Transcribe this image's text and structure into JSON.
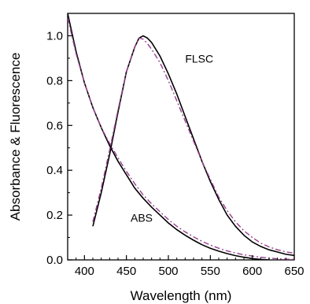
{
  "chart_data": {
    "type": "line",
    "title": "",
    "xlabel": "Wavelength (nm)",
    "ylabel": "Absorbance & Fluorescence",
    "xlim": [
      380,
      650
    ],
    "ylim": [
      0.0,
      1.1
    ],
    "x_ticks": [
      400,
      450,
      500,
      550,
      600,
      650
    ],
    "y_ticks": [
      "0.0",
      "0.2",
      "0.4",
      "0.6",
      "0.8",
      "1.0"
    ],
    "grid": false,
    "legend": "none",
    "annotations": [
      {
        "text": "FLSC",
        "x": 520,
        "y": 0.88
      },
      {
        "text": "ABS",
        "x": 455,
        "y": 0.17
      }
    ],
    "series": [
      {
        "style": "solid",
        "color": "#000000",
        "x": [
          380,
          390,
          400,
          410,
          420,
          430,
          440,
          450,
          460,
          470,
          480,
          490,
          500,
          510,
          520,
          530,
          540,
          550,
          560,
          570,
          580,
          590,
          600,
          610,
          620
        ],
        "y": [
          1.1,
          0.93,
          0.79,
          0.68,
          0.59,
          0.51,
          0.44,
          0.38,
          0.32,
          0.275,
          0.235,
          0.2,
          0.165,
          0.135,
          0.11,
          0.088,
          0.068,
          0.052,
          0.039,
          0.028,
          0.019,
          0.012,
          0.006,
          0.002,
          0.0
        ]
      },
      {
        "style": "dash-dot",
        "color": "#9a3f8f",
        "x": [
          380,
          390,
          400,
          410,
          420,
          430,
          440,
          450,
          460,
          470,
          480,
          490,
          500,
          510,
          520,
          530,
          540,
          550,
          560,
          570,
          580,
          590,
          600,
          610,
          620,
          630,
          640,
          650
        ],
        "y": [
          1.08,
          0.92,
          0.79,
          0.68,
          0.59,
          0.52,
          0.455,
          0.395,
          0.34,
          0.29,
          0.25,
          0.215,
          0.18,
          0.15,
          0.125,
          0.103,
          0.083,
          0.066,
          0.052,
          0.04,
          0.031,
          0.023,
          0.017,
          0.012,
          0.008,
          0.005,
          0.003,
          0.002
        ]
      },
      {
        "style": "solid",
        "color": "#000000",
        "x": [
          410,
          420,
          430,
          440,
          450,
          460,
          465,
          470,
          475,
          480,
          490,
          500,
          510,
          520,
          530,
          540,
          550,
          560,
          570,
          580,
          590,
          600,
          610,
          620,
          630,
          640,
          650
        ],
        "y": [
          0.15,
          0.3,
          0.47,
          0.66,
          0.84,
          0.95,
          0.99,
          1.0,
          0.99,
          0.97,
          0.91,
          0.83,
          0.74,
          0.64,
          0.54,
          0.44,
          0.35,
          0.27,
          0.2,
          0.15,
          0.11,
          0.08,
          0.06,
          0.045,
          0.035,
          0.025,
          0.02
        ]
      },
      {
        "style": "dash-dot",
        "color": "#9a3f8f",
        "x": [
          410,
          420,
          430,
          440,
          450,
          460,
          465,
          470,
          475,
          480,
          490,
          500,
          510,
          520,
          530,
          540,
          550,
          560,
          570,
          580,
          590,
          600,
          610,
          620,
          630,
          640,
          650
        ],
        "y": [
          0.17,
          0.32,
          0.49,
          0.67,
          0.84,
          0.95,
          0.99,
          0.985,
          0.965,
          0.94,
          0.88,
          0.8,
          0.71,
          0.62,
          0.53,
          0.44,
          0.36,
          0.28,
          0.22,
          0.17,
          0.13,
          0.1,
          0.075,
          0.058,
          0.045,
          0.036,
          0.03
        ]
      }
    ]
  }
}
